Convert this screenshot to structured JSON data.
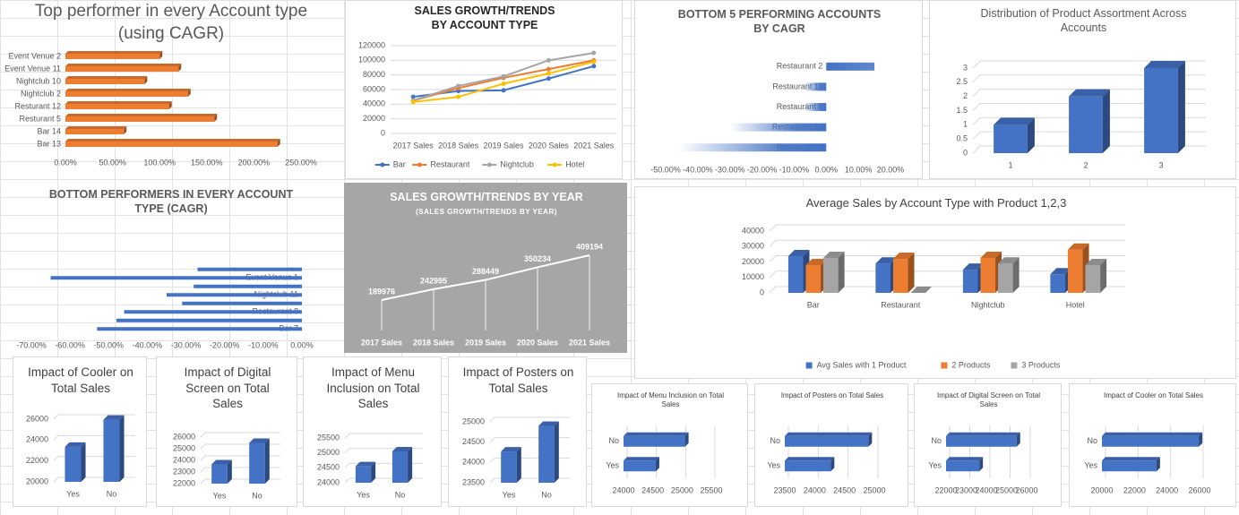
{
  "chart_data": [
    {
      "type": "bar",
      "orientation": "horizontal",
      "three_d": true,
      "title": "Top performer in every Account type (using CAGR)",
      "categories": [
        "Event Venue 2",
        "Event Venue 11",
        "Nightclub 10",
        "Nightclub 2",
        "Resturant 12",
        "Resturant 5",
        "Bar 14",
        "Bar 13"
      ],
      "values": [
        100,
        120,
        84,
        130,
        110,
        158,
        62,
        225
      ],
      "color": "#ed7d31",
      "xlim": [
        0,
        250
      ],
      "xticks": [
        {
          "value": 0,
          "label": "0.00%"
        },
        {
          "value": 50,
          "label": "50.00%"
        },
        {
          "value": 100,
          "label": "100.00%"
        },
        {
          "value": 150,
          "label": "150.00%"
        },
        {
          "value": 200,
          "label": "200.00%"
        },
        {
          "value": 250,
          "label": "250.00%"
        }
      ]
    },
    {
      "type": "line",
      "markers": true,
      "title": "SALES GROWTH/TRENDS BY ACCOUNT TYPE",
      "categories": [
        "2017 Sales",
        "2018 Sales",
        "2019 Sales",
        "2020 Sales",
        "2021 Sales"
      ],
      "series": [
        {
          "name": "Bar",
          "color": "#4472c4",
          "values": [
            50000,
            58000,
            59000,
            75000,
            92000
          ]
        },
        {
          "name": "Restaurant",
          "color": "#ed7d31",
          "values": [
            45000,
            62000,
            76000,
            88000,
            100000
          ]
        },
        {
          "name": "Nightclub",
          "color": "#a5a5a5",
          "values": [
            45000,
            65000,
            78000,
            100000,
            110000
          ]
        },
        {
          "name": "Hotel",
          "color": "#ffc000",
          "values": [
            43000,
            50000,
            68000,
            82000,
            98000
          ]
        }
      ],
      "ylim": [
        0,
        120000
      ],
      "yticks": [
        0,
        20000,
        40000,
        60000,
        80000,
        100000,
        120000
      ],
      "grid": true,
      "legend": "bottom"
    },
    {
      "type": "bar",
      "orientation": "horizontal",
      "gradient": true,
      "title": "BOTTOM 5 PERFORMING ACCOUNTS BY CAGR",
      "categories": [
        "Restaurant 2",
        "Restaurant 11",
        "Restaurant 4",
        "Restaurant 13",
        "Restaurant 3"
      ],
      "values": [
        15,
        -7,
        -7,
        -30,
        -46
      ],
      "color": "#4472c4",
      "xlim": [
        -50,
        20
      ],
      "xticks": [
        {
          "value": -50,
          "label": "-50.00%"
        },
        {
          "value": -40,
          "label": "-40.00%"
        },
        {
          "value": -30,
          "label": "-30.00%"
        },
        {
          "value": -20,
          "label": "-20.00%"
        },
        {
          "value": -10,
          "label": "-10.00%"
        },
        {
          "value": 0,
          "label": "0.00%"
        },
        {
          "value": 10,
          "label": "10.00%"
        },
        {
          "value": 20,
          "label": "20.00%"
        }
      ]
    },
    {
      "type": "bar",
      "three_d": true,
      "title": "Distribution of Product Assortment Across Accounts",
      "categories": [
        "1",
        "2",
        "3"
      ],
      "values": [
        1,
        2,
        3
      ],
      "color": "#4472c4",
      "ylim": [
        0,
        3
      ],
      "yticks": [
        0,
        0.5,
        1,
        1.5,
        2,
        2.5,
        3
      ],
      "grid": true
    },
    {
      "type": "bar",
      "orientation": "horizontal",
      "title": "BOTTOM PERFORMERS IN EVERY ACCOUNT TYPE (CAGR)",
      "categories": [
        null,
        "Event Venue 1",
        null,
        "Nightclub 11",
        null,
        "Restaurant 8",
        null,
        "Bar 7"
      ],
      "values": [
        -27,
        -65,
        -28,
        -35,
        -31,
        -46,
        -48,
        -53
      ],
      "color": "#4472c4",
      "xlim": [
        -70,
        0
      ],
      "xticks": [
        {
          "value": -70,
          "label": "-70.00%"
        },
        {
          "value": -60,
          "label": "-60.00%"
        },
        {
          "value": -50,
          "label": "-50.00%"
        },
        {
          "value": -40,
          "label": "-40.00%"
        },
        {
          "value": -30,
          "label": "-30.00%"
        },
        {
          "value": -20,
          "label": "-20.00%"
        },
        {
          "value": -10,
          "label": "-10.00%"
        },
        {
          "value": 0,
          "label": "0.00%"
        }
      ]
    },
    {
      "type": "line",
      "data_labels": true,
      "drop_lines": true,
      "title": "SALES GROWTH/TRENDS BY YEAR",
      "subtitle": "(SALES GROWTH/TRENDS BY YEAR)",
      "categories": [
        "2017 Sales",
        "2018 Sales",
        "2019 Sales",
        "2020 Sales",
        "2021 Sales"
      ],
      "values": [
        189976,
        242995,
        288449,
        350234,
        409194
      ],
      "color": "#ffffff"
    },
    {
      "type": "bar",
      "three_d": true,
      "title": "Average Sales by Account Type with Product 1,2,3",
      "categories": [
        "Bar",
        "Restaurant",
        "Nightclub",
        "Hotel"
      ],
      "series": [
        {
          "name": "Avg Sales with 1 Product",
          "color": "#4472c4",
          "values": [
            23800,
            19000,
            15000,
            12000
          ]
        },
        {
          "name": "2 Products",
          "color": "#ed7d31",
          "values": [
            18000,
            22000,
            22600,
            28000
          ]
        },
        {
          "name": "3 Products",
          "color": "#a5a5a5",
          "values": [
            22600,
            0,
            19000,
            18000
          ]
        }
      ],
      "ylim": [
        0,
        40000
      ],
      "yticks": [
        0,
        10000,
        20000,
        30000,
        40000
      ],
      "grid": true,
      "legend": "bottom"
    },
    {
      "type": "bar",
      "three_d": true,
      "title": "Impact of Cooler on Total Sales",
      "categories": [
        "Yes",
        "No"
      ],
      "values": [
        23350,
        25950
      ],
      "color": "#4472c4",
      "ylim": [
        20000,
        26000
      ],
      "yticks": [
        20000,
        22000,
        24000,
        26000
      ],
      "grid": true
    },
    {
      "type": "bar",
      "three_d": true,
      "title": "Impact of Digital Screen on Total Sales",
      "categories": [
        "Yes",
        "No"
      ],
      "values": [
        23650,
        25500
      ],
      "color": "#4472c4",
      "ylim": [
        22000,
        26000
      ],
      "yticks": [
        22000,
        23000,
        24000,
        25000,
        26000
      ],
      "grid": true
    },
    {
      "type": "bar",
      "three_d": true,
      "title": "Impact of Menu Inclusion on Total Sales",
      "categories": [
        "Yes",
        "No"
      ],
      "values": [
        24550,
        25050
      ],
      "color": "#4472c4",
      "ylim": [
        24000,
        25500
      ],
      "yticks": [
        24000,
        24500,
        25000,
        25500
      ],
      "grid": true
    },
    {
      "type": "bar",
      "three_d": true,
      "title": "Impact of Posters on Total Sales",
      "categories": [
        "Yes",
        "No"
      ],
      "values": [
        24270,
        24900
      ],
      "color": "#4472c4",
      "ylim": [
        23500,
        25000
      ],
      "yticks": [
        23500,
        24000,
        24500,
        25000
      ],
      "grid": true
    },
    {
      "type": "bar",
      "orientation": "horizontal",
      "three_d": true,
      "title": "Impact of Menu Inclusion on Total Sales",
      "categories": [
        "No",
        "Yes"
      ],
      "values": [
        25050,
        24550
      ],
      "color": "#4472c4",
      "xlim": [
        24000,
        25500
      ],
      "xticks": [
        24000,
        24500,
        25000,
        25500
      ],
      "grid": true
    },
    {
      "type": "bar",
      "orientation": "horizontal",
      "three_d": true,
      "title": "Impact of Posters on Total Sales",
      "categories": [
        "No",
        "Yes"
      ],
      "values": [
        24900,
        24270
      ],
      "color": "#4472c4",
      "xlim": [
        23500,
        25000
      ],
      "xticks": [
        23500,
        24000,
        24500,
        25000
      ],
      "grid": true
    },
    {
      "type": "bar",
      "orientation": "horizontal",
      "three_d": true,
      "title": "Impact of Digital Screen on Total Sales",
      "categories": [
        "No",
        "Yes"
      ],
      "values": [
        25500,
        23650
      ],
      "color": "#4472c4",
      "xlim": [
        22000,
        26000
      ],
      "xticks": [
        22000,
        23000,
        24000,
        25000,
        26000
      ],
      "grid": true
    },
    {
      "type": "bar",
      "orientation": "horizontal",
      "three_d": true,
      "title": "Impact of Cooler on Total Sales",
      "categories": [
        "No",
        "Yes"
      ],
      "values": [
        25950,
        23350
      ],
      "color": "#4472c4",
      "xlim": [
        20000,
        26000
      ],
      "xticks": [
        20000,
        22000,
        24000,
        26000
      ],
      "grid": true
    }
  ]
}
